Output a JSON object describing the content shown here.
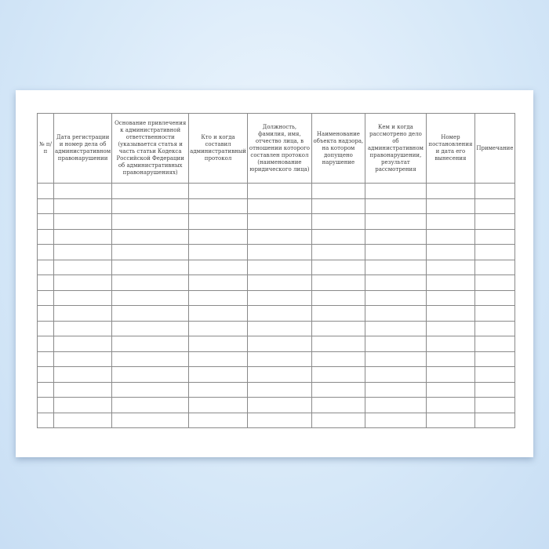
{
  "table": {
    "headers": [
      "№ п/п",
      "Дата регистрации и номер дела об административном правонарушении",
      "Основание привлечения к административной ответственности (указывается статья и часть статьи Кодекса Российской Федерации об административных правонарушениях)",
      "Кто и когда составил административный протокол",
      "Должность, фамилия, имя, отчество лица, в отношении которого составлен протокол (наименование юридического лица)",
      "Наименование объекта надзора, на котором допущено нарушение",
      "Кем и когда рассмотрено дело об административном правонарушении, результат рассмотрения",
      "Номер постановления и дата его вынесения",
      "Примечание"
    ],
    "empty_rows": 16
  }
}
